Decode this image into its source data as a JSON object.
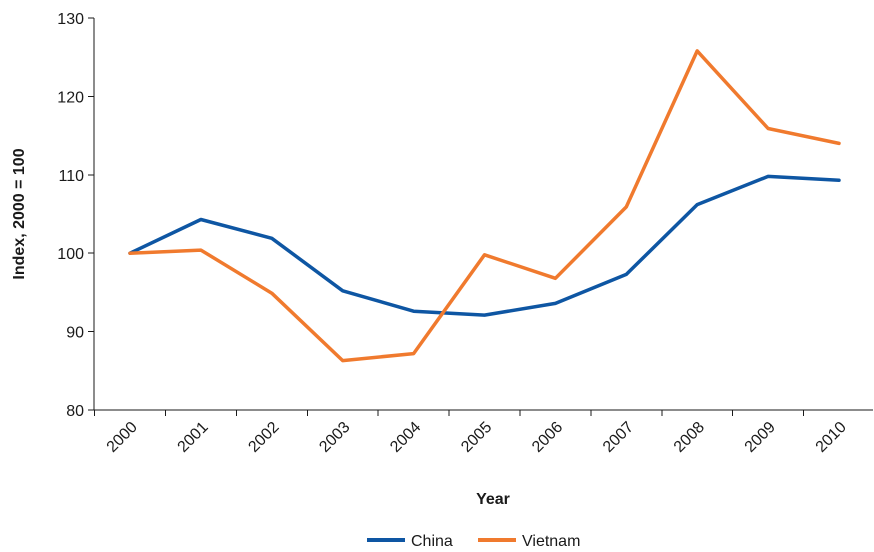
{
  "chart_data": {
    "type": "line",
    "xlabel": "Year",
    "ylabel": "Index, 2000 = 100",
    "ylim": [
      80,
      130
    ],
    "yticks": [
      80,
      90,
      100,
      110,
      120,
      130
    ],
    "categories": [
      "2000",
      "2001",
      "2002",
      "2003",
      "2004",
      "2005",
      "2006",
      "2007",
      "2008",
      "2009",
      "2010"
    ],
    "series": [
      {
        "name": "China",
        "color": "#0e56a3",
        "values": [
          100,
          104.3,
          101.9,
          95.2,
          92.6,
          92.1,
          93.6,
          97.3,
          106.2,
          109.8,
          109.3
        ]
      },
      {
        "name": "Vietnam",
        "color": "#f07a2e",
        "values": [
          100,
          100.4,
          94.9,
          86.3,
          87.2,
          99.8,
          96.8,
          105.9,
          125.8,
          115.9,
          114.0
        ]
      }
    ],
    "grid": false,
    "legend_position": "bottom-center"
  }
}
